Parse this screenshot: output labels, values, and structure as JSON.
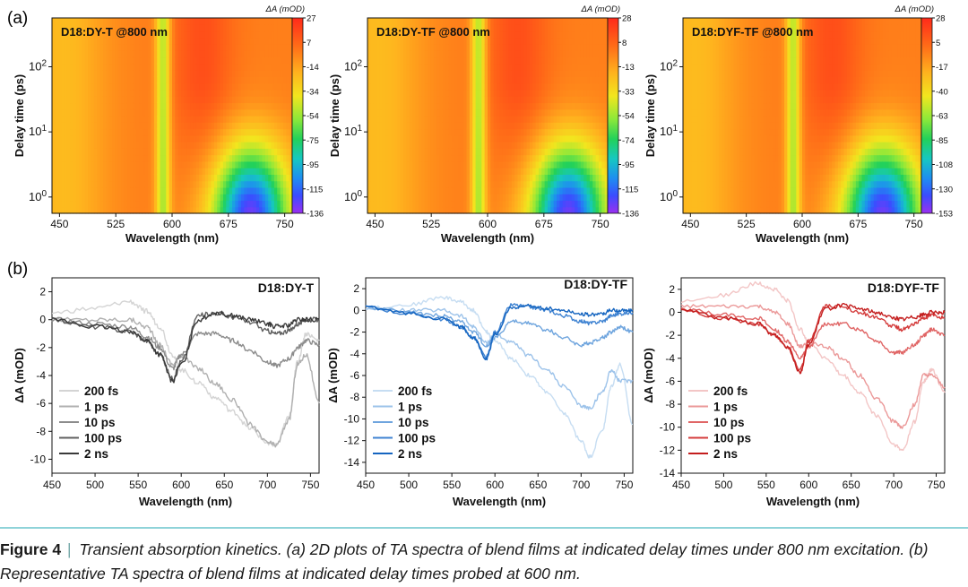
{
  "figure": {
    "panel_a_label": "(a)",
    "panel_b_label": "(b)",
    "caption_label": "Figure 4",
    "caption_separator": "|",
    "caption_text": "Transient absorption kinetics. (a) 2D plots of TA spectra of blend films at indicated delay times under 800 nm excitation. (b) Representative TA spectra of blend films at indicated delay times probed at 600 nm."
  },
  "chart_data": [
    {
      "type": "heatmap",
      "title": "D18:DY-T @800 nm",
      "xlabel": "Wavelength (nm)",
      "ylabel": "Delay time (ps)",
      "colorbar_label": "ΔA (mOD)",
      "x_ticks": [
        450,
        525,
        600,
        675,
        750
      ],
      "y_ticks": [
        "10^0",
        "10^1",
        "10^2"
      ],
      "xlim": [
        440,
        760
      ],
      "ylim_log": [
        -0.25,
        2.75
      ],
      "colorbar_ticks": [
        27,
        7,
        -14,
        -34,
        -54,
        -75,
        -95,
        -115,
        -136
      ],
      "zlim": [
        -136,
        27
      ],
      "features": {
        "dip_center_nm": 588,
        "dip_width_nm": 18,
        "deep_center_nm": 705,
        "deep_width_nm": 48
      }
    },
    {
      "type": "heatmap",
      "title": "D18:DY-TF @800 nm",
      "xlabel": "Wavelength (nm)",
      "ylabel": "Delay time (ps)",
      "colorbar_label": "ΔA (mOD)",
      "x_ticks": [
        450,
        525,
        600,
        675,
        750
      ],
      "y_ticks": [
        "10^0",
        "10^1",
        "10^2"
      ],
      "xlim": [
        440,
        760
      ],
      "ylim_log": [
        -0.25,
        2.75
      ],
      "colorbar_ticks": [
        28,
        8,
        -13,
        -33,
        -54,
        -74,
        -95,
        -115,
        -136
      ],
      "zlim": [
        -136,
        28
      ],
      "features": {
        "dip_center_nm": 588,
        "dip_width_nm": 18,
        "deep_center_nm": 708,
        "deep_width_nm": 48
      }
    },
    {
      "type": "heatmap",
      "title": "D18:DYF-TF @800 nm",
      "xlabel": "Wavelength (nm)",
      "ylabel": "Delay time (ps)",
      "colorbar_label": "ΔA (mOD)",
      "x_ticks": [
        450,
        525,
        600,
        675,
        750
      ],
      "y_ticks": [
        "10^0",
        "10^1",
        "10^2"
      ],
      "xlim": [
        440,
        760
      ],
      "ylim_log": [
        -0.25,
        2.75
      ],
      "colorbar_ticks": [
        28,
        5,
        -17,
        -40,
        -63,
        -85,
        -108,
        -130,
        -153
      ],
      "zlim": [
        -153,
        28
      ],
      "features": {
        "dip_center_nm": 588,
        "dip_width_nm": 18,
        "deep_center_nm": 708,
        "deep_width_nm": 50
      }
    },
    {
      "type": "line",
      "title": "D18:DY-T",
      "xlabel": "Wavelength (nm)",
      "ylabel": "ΔA (mOD)",
      "xlim": [
        450,
        760
      ],
      "ylim": [
        -11,
        3
      ],
      "x_ticks": [
        450,
        500,
        550,
        600,
        650,
        700,
        750
      ],
      "y_ticks": [
        2,
        0,
        -2,
        -4,
        -6,
        -8,
        -10
      ],
      "x": [
        450,
        500,
        540,
        560,
        575,
        590,
        600,
        620,
        640,
        660,
        680,
        700,
        710,
        725,
        735,
        745,
        760
      ],
      "series": [
        {
          "name": "200 fs",
          "color": "#d4d4d4",
          "values": [
            0.5,
            0.8,
            1.3,
            0.6,
            -0.5,
            -2.5,
            -3.6,
            -4.5,
            -5.6,
            -6.6,
            -7.8,
            -8.8,
            -9.0,
            -7.0,
            -3.0,
            -1.0,
            -1.5
          ]
        },
        {
          "name": "1 ps",
          "color": "#b0b0b0",
          "values": [
            0.0,
            0.0,
            0.0,
            -0.5,
            -1.8,
            -3.2,
            -2.6,
            -3.5,
            -4.6,
            -5.8,
            -7.5,
            -8.8,
            -9.0,
            -7.2,
            -3.2,
            -2.5,
            -6.0
          ]
        },
        {
          "name": "10 ps",
          "color": "#8c8c8c",
          "values": [
            0.0,
            -0.3,
            -0.5,
            -1.2,
            -2.0,
            -3.5,
            -2.5,
            -1.0,
            -1.0,
            -1.5,
            -2.2,
            -3.0,
            -3.3,
            -2.8,
            -2.0,
            -1.5,
            -1.8
          ]
        },
        {
          "name": "100 ps",
          "color": "#606060",
          "values": [
            0.0,
            -0.5,
            -0.8,
            -1.5,
            -2.5,
            -4.2,
            -3.0,
            0.3,
            0.5,
            0.2,
            -0.2,
            -0.8,
            -1.0,
            -0.8,
            -0.3,
            0.0,
            0.0
          ]
        },
        {
          "name": "2 ns",
          "color": "#3a3a3a",
          "values": [
            0.0,
            -0.5,
            -0.8,
            -1.5,
            -2.5,
            -4.4,
            -3.2,
            0.0,
            0.5,
            0.3,
            0.0,
            -0.3,
            -0.5,
            -0.4,
            0.0,
            0.0,
            0.0
          ]
        }
      ]
    },
    {
      "type": "line",
      "title": "D18:DY-TF",
      "xlabel": "Wavelength (nm)",
      "ylabel": "ΔA (mOD)",
      "xlim": [
        450,
        760
      ],
      "ylim": [
        -15,
        3
      ],
      "x_ticks": [
        450,
        500,
        550,
        600,
        650,
        700,
        750
      ],
      "y_ticks": [
        2,
        0,
        -2,
        -4,
        -6,
        -8,
        -10,
        -12,
        -14
      ],
      "x": [
        450,
        500,
        540,
        560,
        575,
        590,
        600,
        620,
        640,
        660,
        680,
        700,
        710,
        725,
        735,
        745,
        760
      ],
      "series": [
        {
          "name": "200 fs",
          "color": "#c6ddf2",
          "values": [
            0.2,
            0.5,
            1.2,
            0.8,
            0.0,
            -2.0,
            -2.8,
            -4.5,
            -6.0,
            -7.5,
            -9.5,
            -12.0,
            -13.5,
            -11.0,
            -7.0,
            -5.0,
            -10.5
          ]
        },
        {
          "name": "1 ps",
          "color": "#9dc3ea",
          "values": [
            0.2,
            0.0,
            0.0,
            -0.5,
            -1.5,
            -3.0,
            -2.2,
            -3.0,
            -4.2,
            -5.5,
            -7.0,
            -8.8,
            -9.0,
            -7.5,
            -5.5,
            -6.5,
            -6.5
          ]
        },
        {
          "name": "10 ps",
          "color": "#6fa5de",
          "values": [
            0.3,
            -0.2,
            -0.5,
            -1.0,
            -2.0,
            -3.2,
            -2.5,
            -1.0,
            -1.2,
            -1.8,
            -2.5,
            -3.2,
            -3.0,
            -2.5,
            -2.0,
            -1.5,
            -2.0
          ]
        },
        {
          "name": "100 ps",
          "color": "#3f83d2",
          "values": [
            0.3,
            -0.3,
            -0.8,
            -1.5,
            -2.5,
            -4.3,
            -2.0,
            0.5,
            0.3,
            0.0,
            -0.5,
            -1.0,
            -1.2,
            -1.0,
            -0.5,
            -0.3,
            -0.2
          ]
        },
        {
          "name": "2 ns",
          "color": "#1565c0",
          "values": [
            0.3,
            -0.3,
            -0.8,
            -1.5,
            -2.5,
            -4.5,
            -2.2,
            0.3,
            0.4,
            0.2,
            0.0,
            -0.3,
            -0.4,
            -0.3,
            0.0,
            0.0,
            0.0
          ]
        }
      ]
    },
    {
      "type": "line",
      "title": "D18:DYF-TF",
      "xlabel": "Wavelength (nm)",
      "ylabel": "ΔA (mOD)",
      "xlim": [
        450,
        760
      ],
      "ylim": [
        -14,
        3
      ],
      "x_ticks": [
        450,
        500,
        550,
        600,
        650,
        700,
        750
      ],
      "y_ticks": [
        2,
        0,
        -2,
        -4,
        -6,
        -8,
        -10,
        -12,
        -14
      ],
      "x": [
        450,
        500,
        540,
        560,
        575,
        590,
        600,
        620,
        640,
        660,
        680,
        700,
        710,
        725,
        735,
        745,
        760
      ],
      "series": [
        {
          "name": "200 fs",
          "color": "#f3c6c6",
          "values": [
            1.0,
            1.5,
            2.5,
            2.0,
            1.0,
            -1.5,
            -2.5,
            -4.0,
            -5.5,
            -7.0,
            -9.0,
            -11.5,
            -12.0,
            -9.5,
            -6.0,
            -5.0,
            -7.0
          ]
        },
        {
          "name": "1 ps",
          "color": "#eb9999",
          "values": [
            0.5,
            0.5,
            0.5,
            0.0,
            -1.0,
            -3.0,
            -2.5,
            -3.0,
            -4.0,
            -5.5,
            -7.5,
            -9.5,
            -10.0,
            -8.0,
            -5.5,
            -5.5,
            -6.5
          ]
        },
        {
          "name": "10 ps",
          "color": "#e06666",
          "values": [
            0.3,
            -0.2,
            -0.5,
            -1.5,
            -2.5,
            -4.0,
            -3.0,
            -1.0,
            -1.0,
            -1.5,
            -2.5,
            -3.5,
            -3.5,
            -2.8,
            -2.0,
            -1.5,
            -2.0
          ]
        },
        {
          "name": "100 ps",
          "color": "#d43c3c",
          "values": [
            0.2,
            -0.5,
            -1.0,
            -2.0,
            -3.0,
            -5.0,
            -2.5,
            0.5,
            0.5,
            0.0,
            -0.5,
            -1.2,
            -1.5,
            -1.0,
            -0.5,
            -0.3,
            -0.5
          ]
        },
        {
          "name": "2 ns",
          "color": "#c41e1e",
          "values": [
            0.2,
            -0.5,
            -1.0,
            -2.0,
            -3.0,
            -5.2,
            -2.8,
            0.3,
            0.6,
            0.3,
            0.0,
            -0.5,
            -0.6,
            -0.4,
            -0.2,
            0.0,
            0.0
          ]
        }
      ]
    }
  ]
}
